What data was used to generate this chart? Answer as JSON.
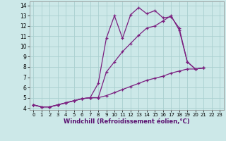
{
  "xlabel": "Windchill (Refroidissement éolien,°C)",
  "bg_color": "#cce8e8",
  "grid_color": "#aacfcf",
  "line_color": "#7b2080",
  "xlim": [
    -0.5,
    23.5
  ],
  "ylim": [
    3.8,
    14.4
  ],
  "yticks": [
    4,
    5,
    6,
    7,
    8,
    9,
    10,
    11,
    12,
    13,
    14
  ],
  "xticks": [
    0,
    1,
    2,
    3,
    4,
    5,
    6,
    7,
    8,
    9,
    10,
    11,
    12,
    13,
    14,
    15,
    16,
    17,
    18,
    19,
    20,
    21,
    22,
    23
  ],
  "line1_x": [
    0,
    1,
    2,
    3,
    4,
    5,
    6,
    7,
    8,
    9,
    10,
    11,
    12,
    13,
    14,
    15,
    16,
    17,
    18,
    19,
    20,
    21
  ],
  "line1_y": [
    4.3,
    4.1,
    4.1,
    4.3,
    4.5,
    4.7,
    4.9,
    5.0,
    6.4,
    10.8,
    13.0,
    10.8,
    13.1,
    13.8,
    13.2,
    13.5,
    12.8,
    12.9,
    11.8,
    8.5,
    7.8,
    7.9
  ],
  "line2_x": [
    0,
    1,
    2,
    3,
    4,
    5,
    6,
    7,
    8,
    9,
    10,
    11,
    12,
    13,
    14,
    15,
    16,
    17,
    18,
    19,
    20,
    21
  ],
  "line2_y": [
    4.3,
    4.1,
    4.1,
    4.3,
    4.5,
    4.7,
    4.9,
    5.0,
    5.0,
    7.5,
    8.5,
    9.5,
    10.3,
    11.1,
    11.8,
    12.0,
    12.5,
    13.0,
    11.6,
    8.5,
    7.8,
    7.9
  ],
  "line3_x": [
    0,
    1,
    2,
    3,
    4,
    5,
    6,
    7,
    8,
    9,
    10,
    11,
    12,
    13,
    14,
    15,
    16,
    17,
    18,
    19,
    20,
    21
  ],
  "line3_y": [
    4.3,
    4.1,
    4.1,
    4.3,
    4.5,
    4.7,
    4.9,
    5.0,
    5.0,
    5.2,
    5.5,
    5.8,
    6.1,
    6.4,
    6.7,
    6.9,
    7.1,
    7.4,
    7.6,
    7.8,
    7.8,
    7.9
  ]
}
